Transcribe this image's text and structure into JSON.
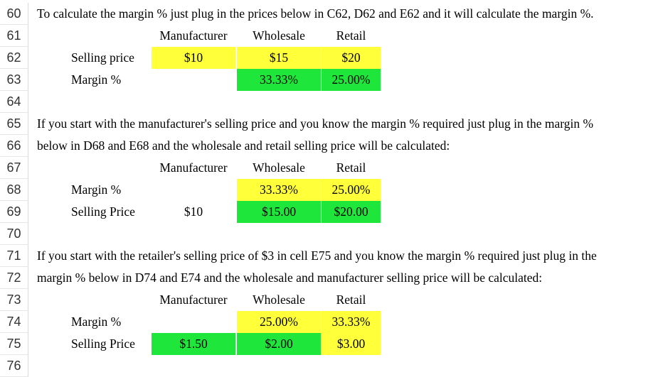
{
  "rows": {
    "r60": {
      "num": "60",
      "text": "To calculate the margin % just plug in the prices below in C62, D62 and E62 and it will calculate the margin %."
    },
    "r61": {
      "num": "61",
      "manufacturer": "Manufacturer",
      "wholesale": "Wholesale",
      "retail": "Retail"
    },
    "r62": {
      "num": "62",
      "label": "Selling price",
      "manufacturer": "$10",
      "wholesale": "$15",
      "retail": "$20"
    },
    "r63": {
      "num": "63",
      "label": "Margin %",
      "wholesale": "33.33%",
      "retail": "25.00%"
    },
    "r64": {
      "num": "64"
    },
    "r65": {
      "num": "65",
      "text": "If you start with the manufacturer's selling price and you know the margin % required just plug in the margin %"
    },
    "r66": {
      "num": "66",
      "text": "below in D68 and E68 and the wholesale and retail selling price will be calculated:"
    },
    "r67": {
      "num": "67",
      "manufacturer": "Manufacturer",
      "wholesale": "Wholesale",
      "retail": "Retail"
    },
    "r68": {
      "num": "68",
      "label": "Margin %",
      "wholesale": "33.33%",
      "retail": "25.00%"
    },
    "r69": {
      "num": "69",
      "label": "Selling Price",
      "manufacturer": "$10",
      "wholesale": "$15.00",
      "retail": "$20.00"
    },
    "r70": {
      "num": "70"
    },
    "r71": {
      "num": "71",
      "text": "If you start with the retailer's selling price of $3 in cell E75 and you know the margin % required just plug in the"
    },
    "r72": {
      "num": "72",
      "text": "margin % below in D74 and E74 and the wholesale and manufacturer selling price will be calculated:"
    },
    "r73": {
      "num": "73",
      "manufacturer": "Manufacturer",
      "wholesale": "Wholesale",
      "retail": "Retail"
    },
    "r74": {
      "num": "74",
      "label": "Margin %",
      "wholesale": "25.00%",
      "retail": "33.33%"
    },
    "r75": {
      "num": "75",
      "label": "Selling Price",
      "manufacturer": "$1.50",
      "wholesale": "$2.00",
      "retail": "$3.00"
    },
    "r76": {
      "num": "76"
    }
  },
  "colors": {
    "input": "#ffff3a",
    "calculated": "#1ee63a"
  }
}
